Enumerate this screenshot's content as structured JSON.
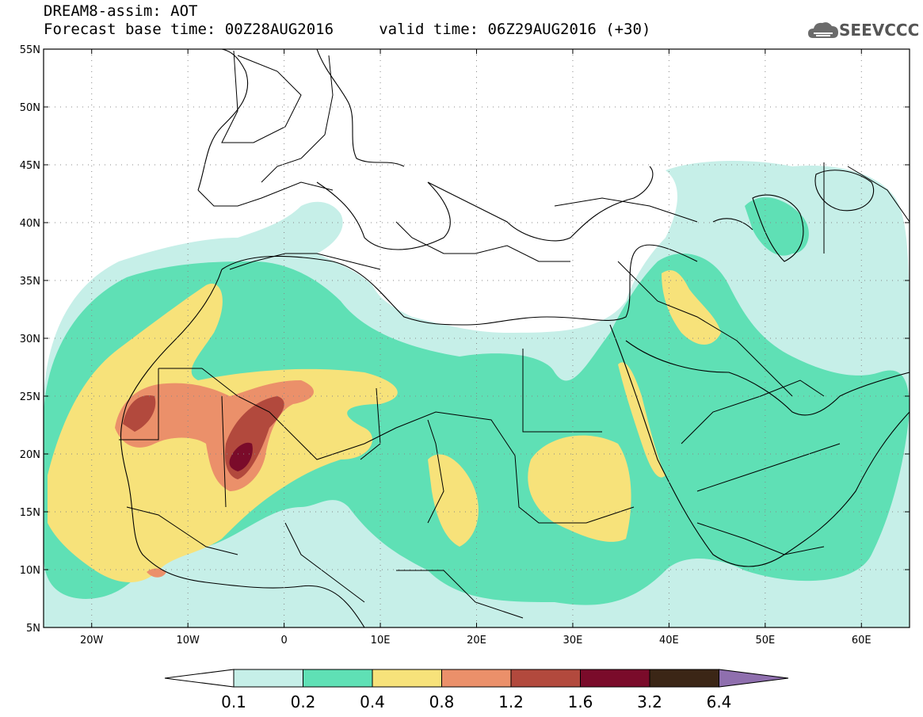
{
  "header": {
    "title_line1": "DREAM8-assim: AOT",
    "title_line2": "Forecast base time: 00Z28AUG2016     valid time: 06Z29AUG2016 (+30)",
    "logo_text": "SEEVCCC",
    "logo_icon": "cloud-icon"
  },
  "map": {
    "lon_range": [
      -25,
      65
    ],
    "lat_range": [
      5,
      55
    ],
    "lat_ticks": [
      {
        "value": 55,
        "label": "55N"
      },
      {
        "value": 50,
        "label": "50N"
      },
      {
        "value": 45,
        "label": "45N"
      },
      {
        "value": 40,
        "label": "40N"
      },
      {
        "value": 35,
        "label": "35N"
      },
      {
        "value": 30,
        "label": "30N"
      },
      {
        "value": 25,
        "label": "25N"
      },
      {
        "value": 20,
        "label": "20N"
      },
      {
        "value": 15,
        "label": "15N"
      },
      {
        "value": 10,
        "label": "10N"
      },
      {
        "value": 5,
        "label": "5N"
      }
    ],
    "lon_ticks": [
      {
        "value": -20,
        "label": "20W"
      },
      {
        "value": -10,
        "label": "10W"
      },
      {
        "value": 0,
        "label": "0"
      },
      {
        "value": 10,
        "label": "10E"
      },
      {
        "value": 20,
        "label": "20E"
      },
      {
        "value": 30,
        "label": "30E"
      },
      {
        "value": 40,
        "label": "40E"
      },
      {
        "value": 50,
        "label": "50E"
      },
      {
        "value": 60,
        "label": "60E"
      }
    ]
  },
  "colorbar": {
    "labels": [
      "0.1",
      "0.2",
      "0.4",
      "0.8",
      "1.2",
      "1.6",
      "3.2",
      "6.4"
    ],
    "colors": [
      "#ffffff",
      "#c6efe8",
      "#5fe0b5",
      "#f7e27a",
      "#eb906a",
      "#b2493d",
      "#7a0b2a",
      "#3b2616",
      "#8f6fae"
    ]
  }
}
